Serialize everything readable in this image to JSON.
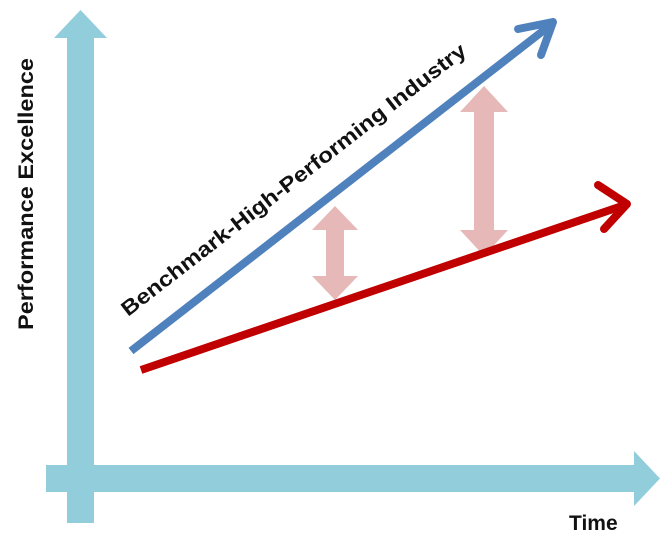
{
  "diagram": {
    "y_axis_label": "Performance Excellence",
    "x_axis_label": "Time",
    "benchmark_label": "Benchmark-High-Performing Industry",
    "colors": {
      "axis": "#92CDDC",
      "benchmark_line": "#4F81BD",
      "company_line": "#C00000",
      "gap_arrow": "#E6B9B8"
    },
    "icons": {
      "y_axis": "up-arrow-axis",
      "x_axis": "right-arrow-axis",
      "benchmark_line": "upward-trend-arrow",
      "company_line": "upward-trend-arrow",
      "gap": "double-headed-arrow"
    }
  }
}
